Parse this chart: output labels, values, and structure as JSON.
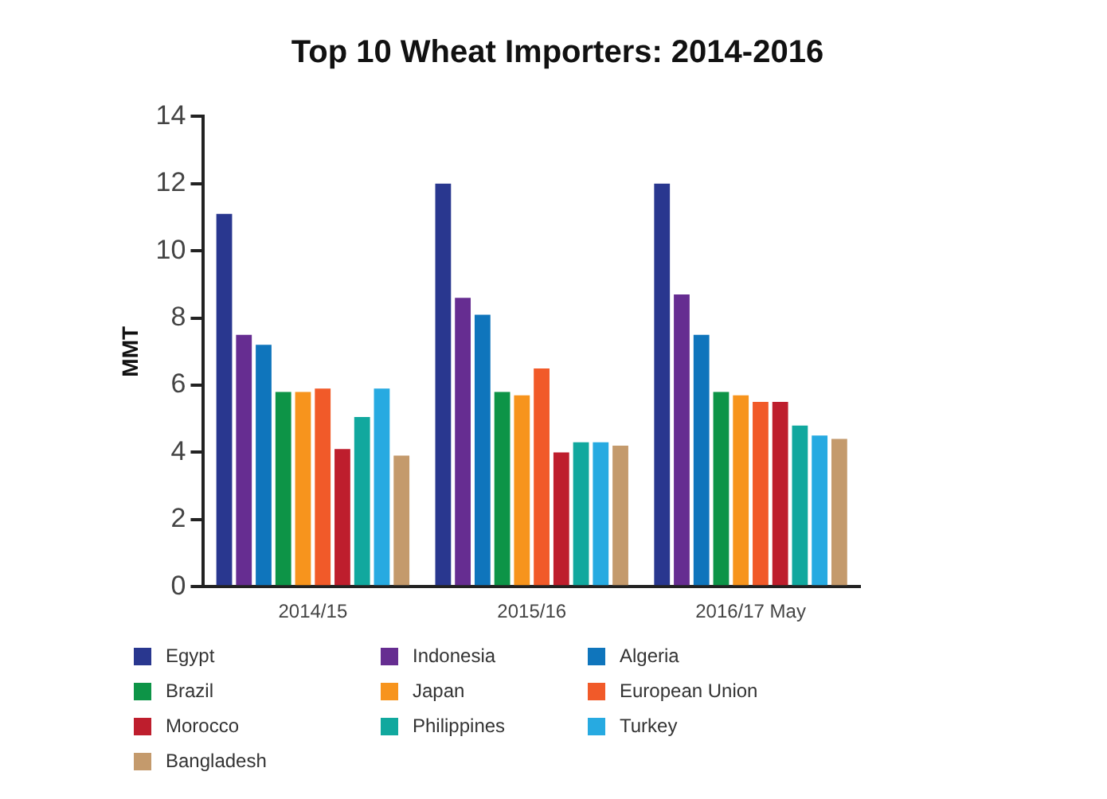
{
  "chart_data": {
    "type": "bar",
    "title": "Top 10 Wheat Importers: 2014-2016",
    "ylabel": "MMT",
    "categories": [
      "2014/15",
      "2015/16",
      "2016/17 May"
    ],
    "series": [
      {
        "name": "Egypt",
        "color": "#29378f",
        "values": [
          11.1,
          12.0,
          12.0
        ]
      },
      {
        "name": "Indonesia",
        "color": "#662d91",
        "values": [
          7.5,
          8.6,
          8.7
        ]
      },
      {
        "name": "Algeria",
        "color": "#0f75bc",
        "values": [
          7.2,
          8.1,
          7.5
        ]
      },
      {
        "name": "Brazil",
        "color": "#0d9447",
        "values": [
          5.8,
          5.8,
          5.8
        ]
      },
      {
        "name": "Japan",
        "color": "#f7941d",
        "values": [
          5.8,
          5.7,
          5.7
        ]
      },
      {
        "name": "European Union",
        "color": "#f15a29",
        "values": [
          5.9,
          6.5,
          5.5
        ]
      },
      {
        "name": "Morocco",
        "color": "#be1e2d",
        "values": [
          4.1,
          4.0,
          5.5
        ]
      },
      {
        "name": "Philippines",
        "color": "#11a89e",
        "values": [
          5.05,
          4.3,
          4.8
        ]
      },
      {
        "name": "Turkey",
        "color": "#27aae1",
        "values": [
          5.9,
          4.3,
          4.5
        ]
      },
      {
        "name": "Bangladesh",
        "color": "#c49a6c",
        "values": [
          3.9,
          4.2,
          4.4
        ]
      }
    ],
    "ylim": [
      0,
      14
    ],
    "yticks": [
      0,
      2,
      4,
      6,
      8,
      10,
      12,
      14
    ],
    "grid": false,
    "legend": "bottom"
  }
}
